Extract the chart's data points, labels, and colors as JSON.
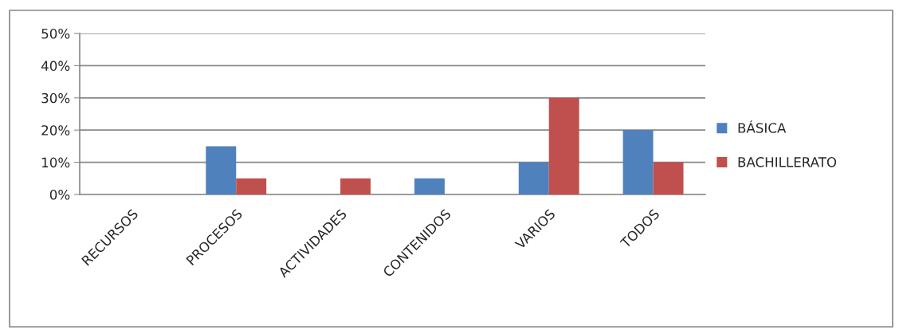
{
  "chart_data": {
    "type": "bar",
    "categories": [
      "RECURSOS",
      "PROCESOS",
      "ACTIVIDADES",
      "CONTENIDOS",
      "VARIOS",
      "TODOS"
    ],
    "series": [
      {
        "name": "BÁSICA",
        "color": "#4f81bd",
        "values": [
          0,
          15,
          0,
          5,
          10,
          20
        ]
      },
      {
        "name": "BACHILLERATO",
        "color": "#c0504d",
        "values": [
          0,
          5,
          5,
          0,
          30,
          10
        ]
      }
    ],
    "ylim": [
      0,
      50
    ],
    "yticks": [
      {
        "value": 0,
        "label": "0%"
      },
      {
        "value": 10,
        "label": "10%"
      },
      {
        "value": 20,
        "label": "20%"
      },
      {
        "value": 30,
        "label": "30%"
      },
      {
        "value": 40,
        "label": "40%"
      },
      {
        "value": 50,
        "label": "50%"
      }
    ],
    "grid": "y",
    "legend": "right"
  }
}
